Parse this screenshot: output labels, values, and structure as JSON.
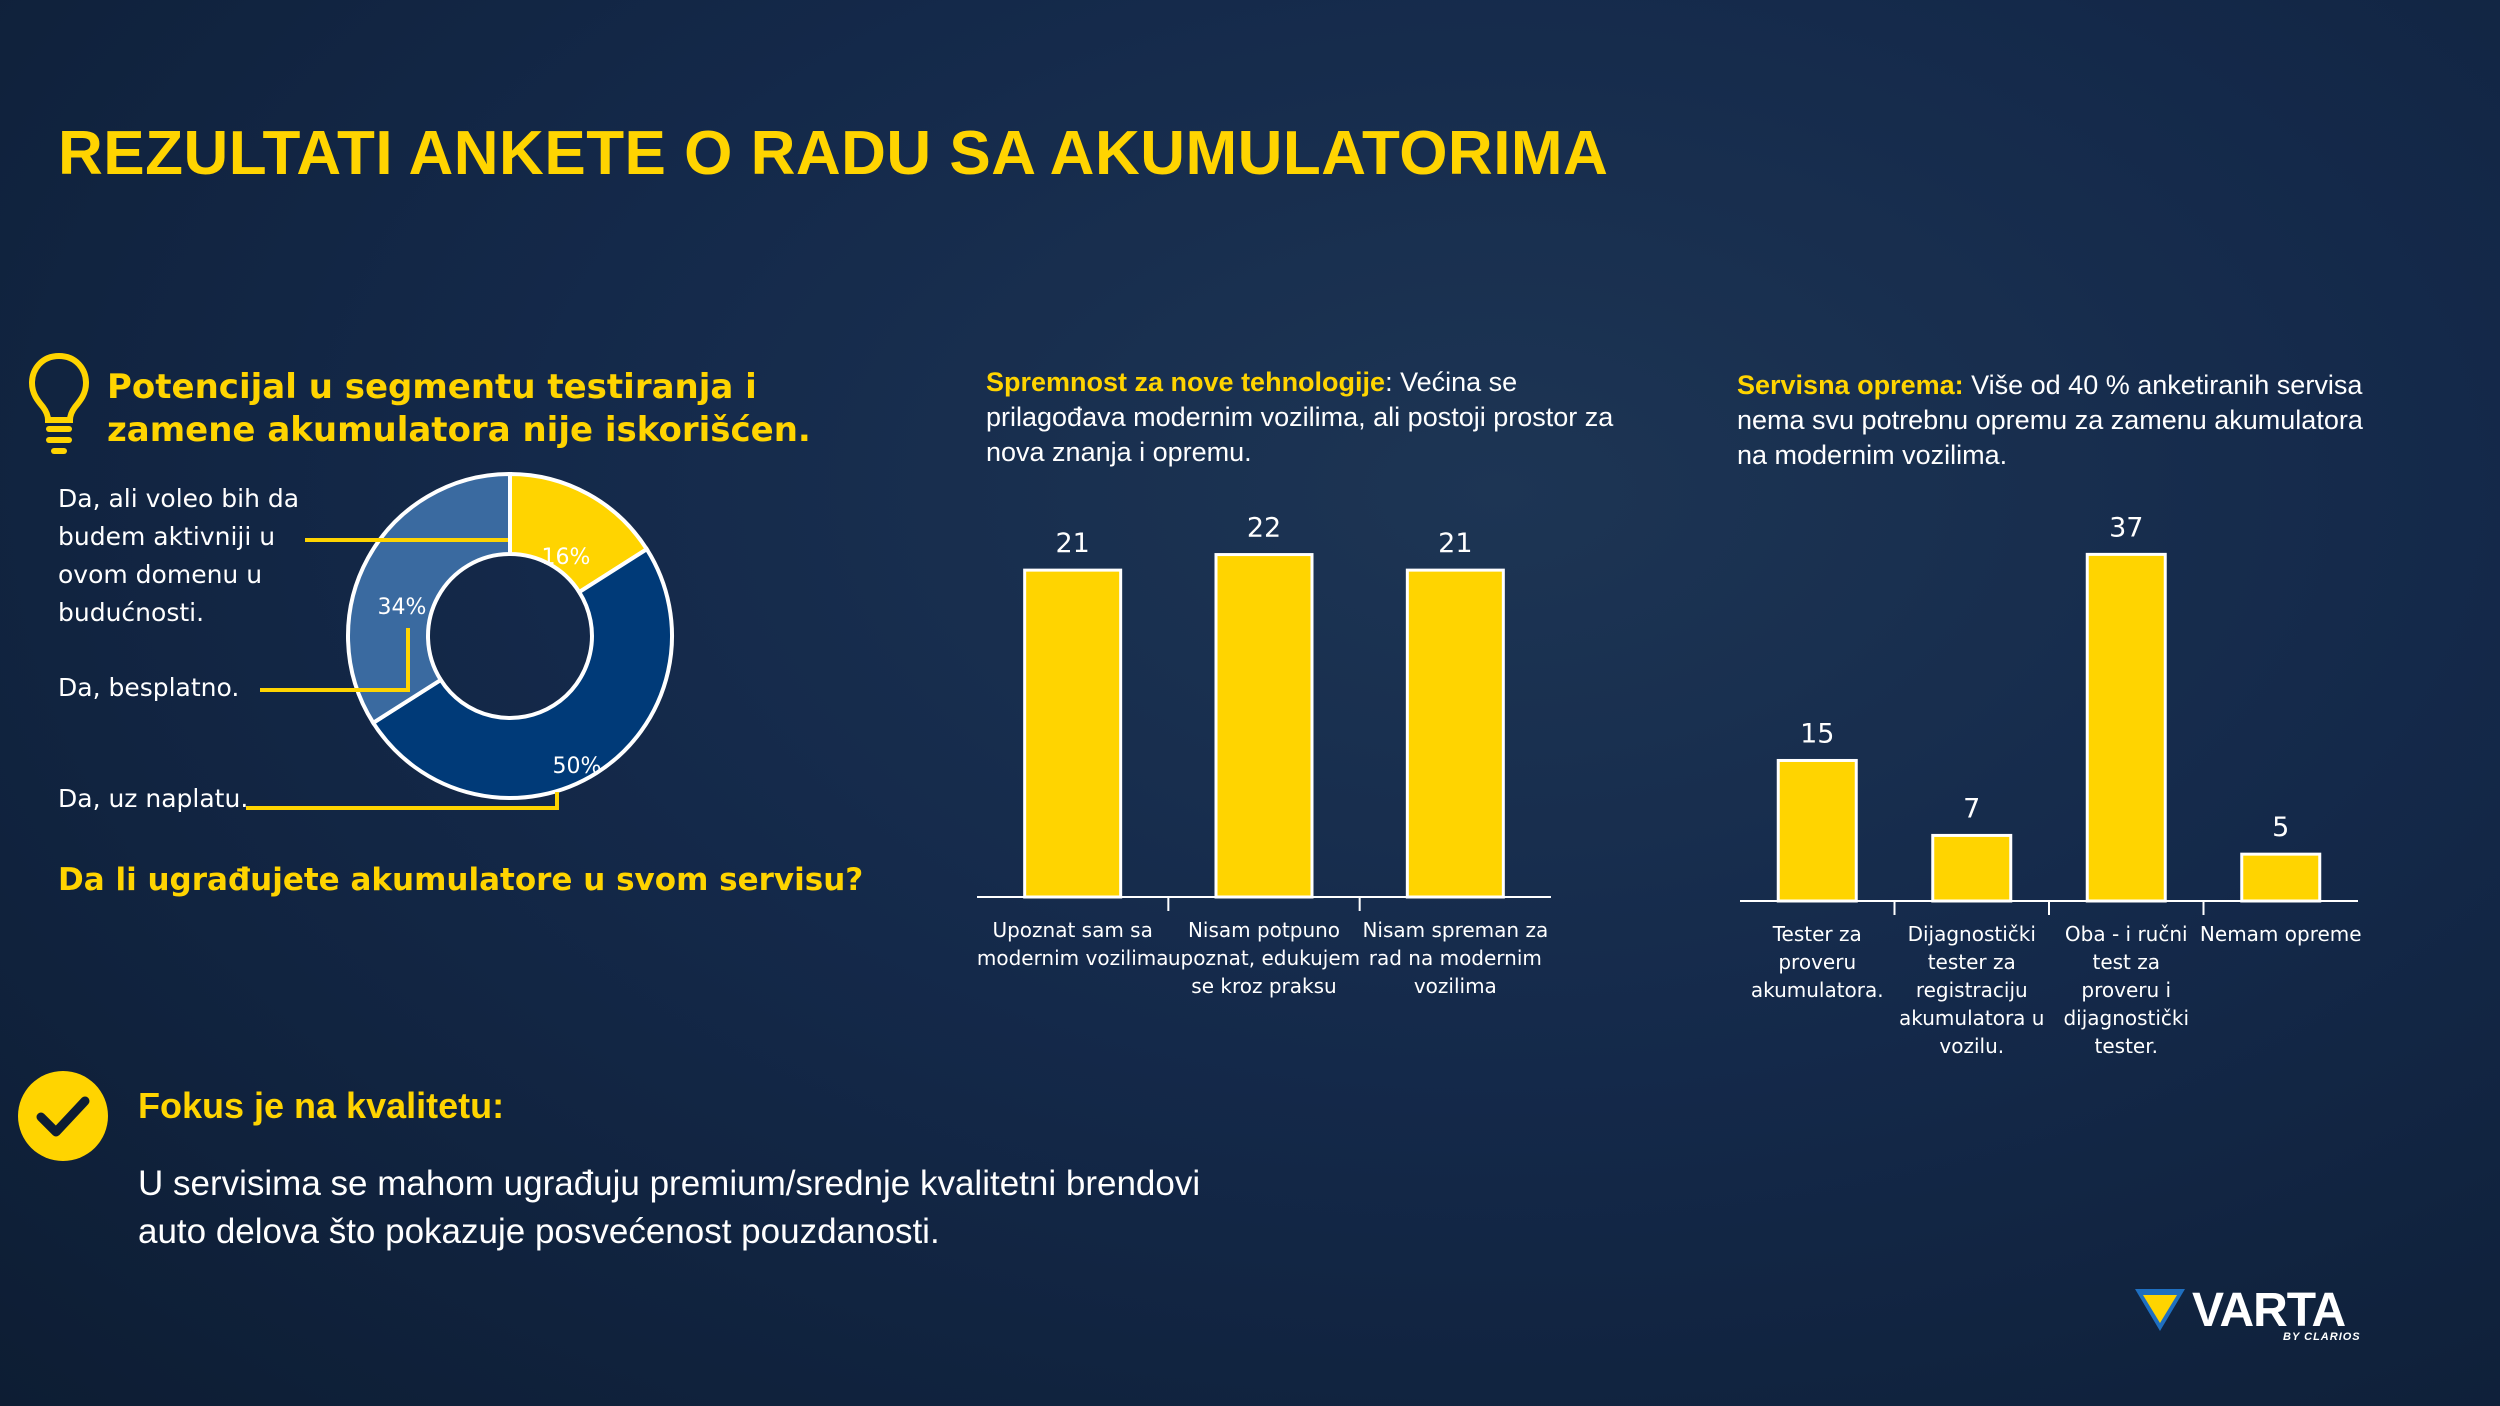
{
  "title": "REZULTATI ANKETE O RADU SA AKUMULATORIMA",
  "colors": {
    "accent": "#ffd400",
    "dark_blue": "#003a78",
    "mid_blue": "#3a6aa0",
    "background": "#14294a"
  },
  "donut_section": {
    "heading": "Potencijal u segmentu testiranja i zamene akumulatora nije iskorišćen.",
    "question": "Da li ugrađujete akumulatore u svom servisu?"
  },
  "chart1": {
    "description_label": "Spremnost za nove tehnologije",
    "description_text": ": Većina se prilagođava modernim vozilima, ali postoji prostor za nova znanja i opremu."
  },
  "chart2": {
    "description_label": "Servisna oprema:",
    "description_text": " Više od 40 % anketiranih servisa nema svu potrebnu opremu za zamenu akumulatora na modernim vozilima."
  },
  "fokus": {
    "title": "Fokus je na kvalitetu:",
    "text": "U servisima se mahom ugrađuju premium/srednje kvalitetni brendovi auto delova što pokazuje posvećenost pouzdanosti."
  },
  "brand": {
    "name": "VARTA",
    "sub": "BY CLARIOS"
  },
  "icons": {
    "bulb": "lightbulb-icon",
    "check": "checkmark-icon",
    "logo": "varta-logo-icon"
  },
  "chart_data": [
    {
      "type": "pie",
      "variant": "donut",
      "categories": [
        "Da, ali voleo bih da budem aktivniji u ovom domenu u budućnosti.",
        "Da, besplatno.",
        "Da, uz naplatu."
      ],
      "values": [
        16,
        34,
        50
      ],
      "value_labels": [
        "16%",
        "34%",
        "50%"
      ],
      "colors": [
        "#ffd400",
        "#3a6aa0",
        "#003a78"
      ]
    },
    {
      "type": "bar",
      "categories": [
        "Upoznat sam sa modernim vozilima",
        "Nisam potpuno upoznat, edukujem se kroz praksu",
        "Nisam spreman za rad na modernim vozilima"
      ],
      "values": [
        21,
        22,
        21
      ],
      "ylim": [
        0,
        23
      ]
    },
    {
      "type": "bar",
      "categories": [
        "Tester za proveru akumulatora.",
        "Dijagnostički tester za registraciju akumulatora u vozilu.",
        "Oba - i ručni test za proveru i dijagnostički tester.",
        "Nemam opreme"
      ],
      "values": [
        15,
        7,
        37,
        5
      ],
      "ylim": [
        0,
        38
      ]
    }
  ]
}
